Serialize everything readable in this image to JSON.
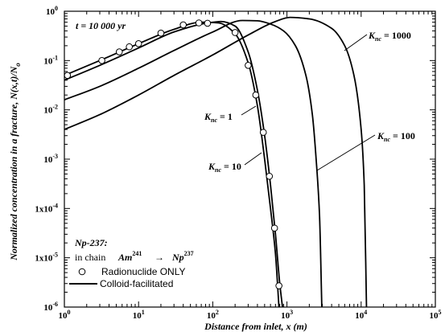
{
  "chart_data": {
    "type": "line",
    "title": "t = 10 000 yr",
    "xlabel": "Distance from inlet, x (m)",
    "ylabel": "Normalized concentration in a fracture, N(x,t)/N",
    "ylabel_sub": "o",
    "x_scale": "log",
    "y_scale": "log",
    "xlim": [
      1,
      100000
    ],
    "ylim": [
      1e-06,
      1
    ],
    "x_ticks": [
      {
        "value": 1,
        "base": "10",
        "exp": "0"
      },
      {
        "value": 10,
        "base": "10",
        "exp": "1"
      },
      {
        "value": 100,
        "base": "10",
        "exp": "2"
      },
      {
        "value": 1000,
        "base": "10",
        "exp": "3"
      },
      {
        "value": 10000,
        "base": "10",
        "exp": "4"
      },
      {
        "value": 100000,
        "base": "10",
        "exp": "5"
      }
    ],
    "y_ticks": [
      {
        "value": 1,
        "base": "10",
        "exp": "0"
      },
      {
        "value": 0.1,
        "base": "10",
        "exp": "-1"
      },
      {
        "value": 0.01,
        "base": "10",
        "exp": "-2"
      },
      {
        "value": 0.001,
        "base": "10",
        "exp": "-3"
      },
      {
        "value": 0.0001,
        "base": "1x10",
        "exp": "-4"
      },
      {
        "value": 1e-05,
        "base": "1x10",
        "exp": "-5"
      },
      {
        "value": 1e-06,
        "base": "10",
        "exp": "-6"
      }
    ],
    "series": [
      {
        "name": "Radionuclide ONLY",
        "style": "markers",
        "points": [
          [
            1.1,
            0.05
          ],
          [
            3.2,
            0.1
          ],
          [
            5.5,
            0.15
          ],
          [
            7.5,
            0.19
          ],
          [
            10,
            0.22
          ],
          [
            20,
            0.36
          ],
          [
            40,
            0.53
          ],
          [
            65,
            0.58
          ],
          [
            85,
            0.57
          ],
          [
            200,
            0.37
          ],
          [
            300,
            0.08
          ],
          [
            380,
            0.02
          ],
          [
            480,
            0.0035
          ],
          [
            580,
            0.00045
          ],
          [
            680,
            4e-05
          ],
          [
            780,
            2.7e-06
          ]
        ]
      },
      {
        "name": "Colloid-facilitated",
        "label": "K_nc = 1",
        "style": "line",
        "points": [
          [
            1,
            0.05
          ],
          [
            3,
            0.1
          ],
          [
            10,
            0.22
          ],
          [
            30,
            0.43
          ],
          [
            70,
            0.6
          ],
          [
            120,
            0.58
          ],
          [
            200,
            0.35
          ],
          [
            300,
            0.09
          ],
          [
            400,
            0.012
          ],
          [
            500,
            0.001
          ],
          [
            600,
            0.0001
          ],
          [
            700,
            1.2e-05
          ],
          [
            780,
            1e-06
          ]
        ]
      },
      {
        "label": "K_nc = 10",
        "style": "line",
        "points": [
          [
            1,
            0.04
          ],
          [
            3,
            0.08
          ],
          [
            10,
            0.18
          ],
          [
            30,
            0.38
          ],
          [
            80,
            0.57
          ],
          [
            130,
            0.62
          ],
          [
            200,
            0.5
          ],
          [
            300,
            0.15
          ],
          [
            400,
            0.025
          ],
          [
            500,
            0.003
          ],
          [
            600,
            0.0003
          ],
          [
            700,
            3e-05
          ],
          [
            800,
            3e-06
          ],
          [
            870,
            1e-06
          ]
        ]
      },
      {
        "label": "K_nc = 100",
        "style": "line",
        "points": [
          [
            1,
            0.016
          ],
          [
            3,
            0.03
          ],
          [
            10,
            0.07
          ],
          [
            30,
            0.16
          ],
          [
            100,
            0.38
          ],
          [
            250,
            0.65
          ],
          [
            400,
            0.64
          ],
          [
            600,
            0.55
          ],
          [
            900,
            0.4
          ],
          [
            1300,
            0.2
          ],
          [
            1800,
            0.05
          ],
          [
            2200,
            0.008
          ],
          [
            2500,
            0.0008
          ],
          [
            2750,
            7e-05
          ],
          [
            2950,
            1e-06
          ]
        ]
      },
      {
        "label": "K_nc = 1000",
        "style": "line",
        "points": [
          [
            1,
            0.004
          ],
          [
            3,
            0.008
          ],
          [
            10,
            0.02
          ],
          [
            30,
            0.05
          ],
          [
            100,
            0.13
          ],
          [
            300,
            0.33
          ],
          [
            700,
            0.62
          ],
          [
            1100,
            0.75
          ],
          [
            2000,
            0.7
          ],
          [
            4000,
            0.45
          ],
          [
            6000,
            0.2
          ],
          [
            8000,
            0.05
          ],
          [
            10000,
            0.004
          ],
          [
            11000,
            0.0003
          ],
          [
            11800,
            1e-06
          ]
        ]
      }
    ],
    "annotations": {
      "time_label": "t = 10 000 yr",
      "chain_title": "Np-237",
      "chain_text": "in chain",
      "parent": "Am",
      "parent_mass": "241",
      "arrow": "→",
      "daughter": "Np",
      "daughter_mass": "237",
      "k_symbol": "K",
      "k_sub": "nc",
      "k1_val": "= 1",
      "k10_val": "= 10",
      "k100_val": "= 100",
      "k1000_val": "= 1000"
    },
    "legend": {
      "placement": "bottom-left",
      "items": [
        "Radionuclide ONLY",
        "Colloid-facilitated"
      ]
    }
  }
}
